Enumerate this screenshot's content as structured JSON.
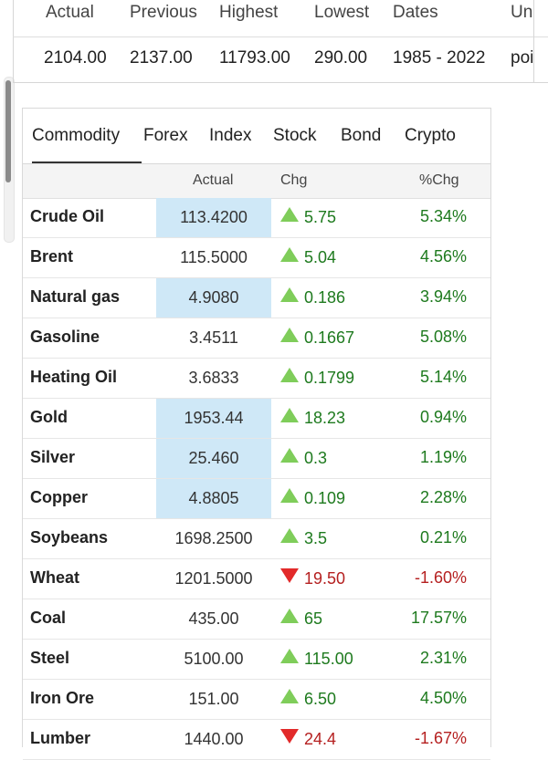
{
  "summary": {
    "headers": [
      "Actual",
      "Previous",
      "Highest",
      "Lowest",
      "Dates",
      "Un"
    ],
    "values": [
      "2104.00",
      "2137.00",
      "11793.00",
      "290.00",
      "1985 - 2022",
      "poi"
    ]
  },
  "tabs": [
    "Commodity",
    "Forex",
    "Index",
    "Stock",
    "Bond",
    "Crypto"
  ],
  "columns": {
    "actual": "Actual",
    "chg": "Chg",
    "pct": "%Chg"
  },
  "rows": [
    {
      "name": "Crude Oil",
      "actual": "113.4200",
      "chg": "5.75",
      "pct": "5.34%",
      "dir": "up",
      "hl": true
    },
    {
      "name": "Brent",
      "actual": "115.5000",
      "chg": "5.04",
      "pct": "4.56%",
      "dir": "up",
      "hl": false
    },
    {
      "name": "Natural gas",
      "actual": "4.9080",
      "chg": "0.186",
      "pct": "3.94%",
      "dir": "up",
      "hl": true
    },
    {
      "name": "Gasoline",
      "actual": "3.4511",
      "chg": "0.1667",
      "pct": "5.08%",
      "dir": "up",
      "hl": false
    },
    {
      "name": "Heating Oil",
      "actual": "3.6833",
      "chg": "0.1799",
      "pct": "5.14%",
      "dir": "up",
      "hl": false
    },
    {
      "name": "Gold",
      "actual": "1953.44",
      "chg": "18.23",
      "pct": "0.94%",
      "dir": "up",
      "hl": true
    },
    {
      "name": "Silver",
      "actual": "25.460",
      "chg": "0.3",
      "pct": "1.19%",
      "dir": "up",
      "hl": true
    },
    {
      "name": "Copper",
      "actual": "4.8805",
      "chg": "0.109",
      "pct": "2.28%",
      "dir": "up",
      "hl": true
    },
    {
      "name": "Soybeans",
      "actual": "1698.2500",
      "chg": "3.5",
      "pct": "0.21%",
      "dir": "up",
      "hl": false
    },
    {
      "name": "Wheat",
      "actual": "1201.5000",
      "chg": "19.50",
      "pct": "-1.60%",
      "dir": "down",
      "hl": false
    },
    {
      "name": "Coal",
      "actual": "435.00",
      "chg": "65",
      "pct": "17.57%",
      "dir": "up",
      "hl": false
    },
    {
      "name": "Steel",
      "actual": "5100.00",
      "chg": "115.00",
      "pct": "2.31%",
      "dir": "up",
      "hl": false
    },
    {
      "name": "Iron Ore",
      "actual": "151.00",
      "chg": "6.50",
      "pct": "4.50%",
      "dir": "up",
      "hl": false
    },
    {
      "name": "Lumber",
      "actual": "1440.00",
      "chg": "24.4",
      "pct": "-1.67%",
      "dir": "down",
      "hl": false
    }
  ],
  "colors": {
    "up": "#1e7a1e",
    "down": "#b52020",
    "highlight": "#cfe8f7",
    "up_arrow": "#7fcd5a",
    "down_arrow": "#e22a2a"
  }
}
